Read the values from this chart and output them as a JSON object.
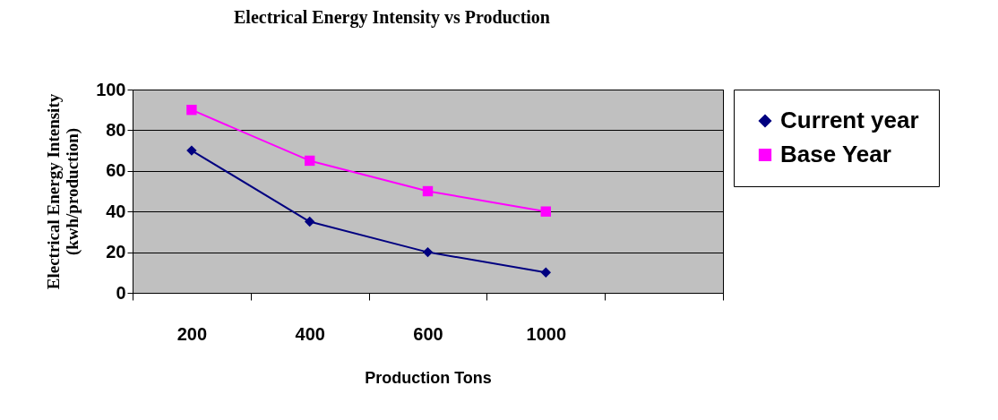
{
  "chart_data": {
    "type": "line",
    "title": "Electrical Energy Intensity vs  Production",
    "xlabel": "Production Tons",
    "ylabel": "Electrical Energy Intensity\n(kwh/production)",
    "categories": [
      "200",
      "400",
      "600",
      "1000",
      null
    ],
    "series": [
      {
        "name": "Current year",
        "color": "#000080",
        "marker": "diamond",
        "values": [
          70,
          35,
          20,
          10,
          null
        ]
      },
      {
        "name": "Base Year",
        "color": "#ff00ff",
        "marker": "square",
        "values": [
          90,
          65,
          50,
          40,
          null
        ]
      }
    ],
    "ylim": [
      0,
      100
    ],
    "yticks": [
      0,
      20,
      40,
      60,
      80,
      100
    ],
    "grid": "y",
    "legend": "right",
    "line_style": "solid"
  }
}
